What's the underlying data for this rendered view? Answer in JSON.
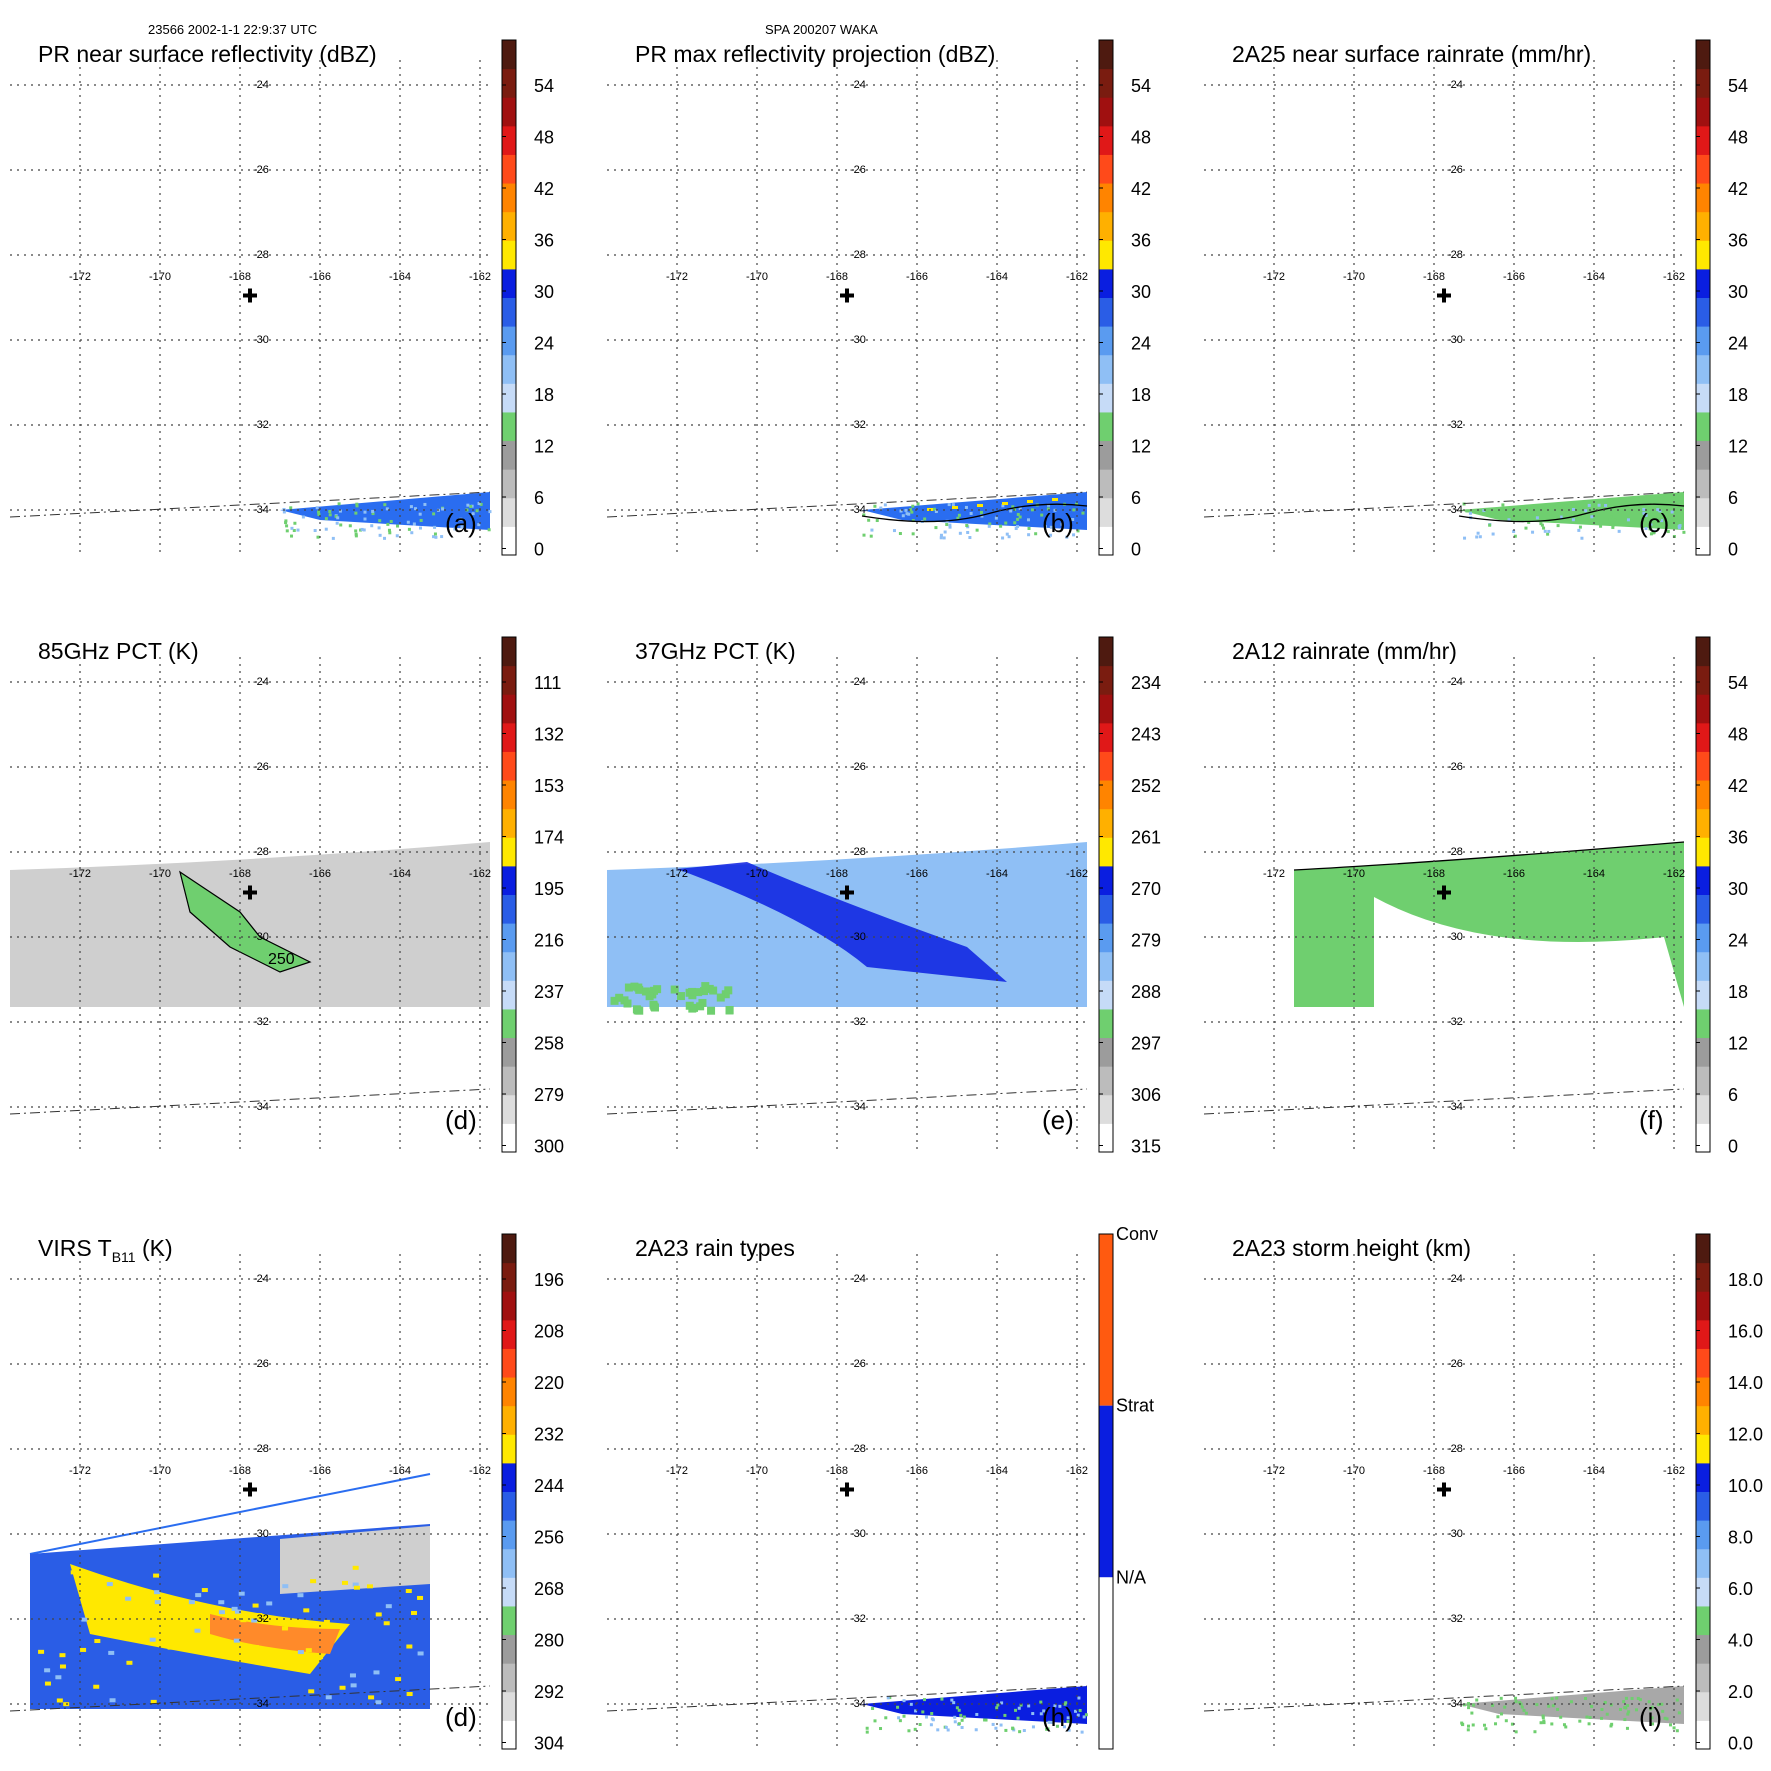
{
  "header": {
    "left": "23566 2002-1-1 22:9:37 UTC",
    "center": "SPA 200207 WAKA"
  },
  "colors": {
    "jet": [
      "#ffffff",
      "#dddddd",
      "#bcbcbc",
      "#9c9c9c",
      "#6fcf6f",
      "#c6dbf7",
      "#8fbff5",
      "#5a9bf0",
      "#2a5de6",
      "#0a1ee0",
      "#ffe800",
      "#ffb000",
      "#ff8400",
      "#ff4a1a",
      "#e01818",
      "#a01010",
      "#7a1c10",
      "#4e1a10"
    ],
    "rain_types": [
      "#ffffff",
      "#0a1ee0",
      "#ff5a10"
    ],
    "swath_blue": "#2a6df0",
    "gray_field": "#cfcfcf",
    "green_field": "#6fcf6f",
    "yellow_field": "#ffe800",
    "orange_field": "#ff8a2a",
    "light_blue": "#8fbff5"
  },
  "chart_data": [
    {
      "id": "a",
      "type": "heatmap",
      "title": "PR near surface reflectivity (dBZ)",
      "panel_label": "(a)",
      "cbar": {
        "ticks": [
          "54",
          "48",
          "42",
          "36",
          "30",
          "24",
          "18",
          "12",
          "6",
          "0"
        ],
        "range": [
          0,
          60
        ]
      },
      "field": "pr_swath",
      "lons": [
        "-172",
        "-170",
        "-168",
        "-166",
        "-164",
        "-162"
      ],
      "lats": [
        "-24",
        "-26",
        "-28",
        "-30",
        "-32",
        "-34"
      ],
      "cross": {
        "lon": -167.6,
        "lat": -29
      },
      "swath_lat_range": [
        -33.5,
        -34
      ]
    },
    {
      "id": "b",
      "type": "heatmap",
      "title": "PR max reflectivity projection (dBZ)",
      "panel_label": "(b)",
      "cbar": {
        "ticks": [
          "54",
          "48",
          "42",
          "36",
          "30",
          "24",
          "18",
          "12",
          "6",
          "0"
        ],
        "range": [
          0,
          60
        ]
      },
      "field": "pr_swath",
      "lons": [
        "-172",
        "-170",
        "-168",
        "-166",
        "-164",
        "-162"
      ],
      "lats": [
        "-24",
        "-26",
        "-28",
        "-30",
        "-32",
        "-34"
      ],
      "cross": {
        "lon": -167.6,
        "lat": -29
      },
      "contour": "20"
    },
    {
      "id": "c",
      "type": "heatmap",
      "title": "2A25 near surface rainrate (mm/hr)",
      "panel_label": "(c)",
      "cbar": {
        "ticks": [
          "54",
          "48",
          "42",
          "36",
          "30",
          "24",
          "18",
          "12",
          "6",
          "0"
        ],
        "range": [
          0,
          60
        ]
      },
      "field": "pr_swath",
      "lons": [
        "-172",
        "-170",
        "-168",
        "-166",
        "-164",
        "-162"
      ],
      "lats": [
        "-24",
        "-26",
        "-28",
        "-30",
        "-32",
        "-34"
      ],
      "cross": {
        "lon": -167.6,
        "lat": -29
      }
    },
    {
      "id": "d",
      "type": "heatmap",
      "title": "85GHz PCT (K)",
      "panel_label": "(d)",
      "cbar": {
        "ticks": [
          "111",
          "132",
          "153",
          "174",
          "195",
          "216",
          "237",
          "258",
          "279",
          "300"
        ],
        "range": [
          300,
          90
        ]
      },
      "field": "tmi_swath",
      "lons": [
        "-172",
        "-170",
        "-168",
        "-166",
        "-164",
        "-162"
      ],
      "lats": [
        "-24",
        "-26",
        "-28",
        "-30",
        "-32",
        "-34"
      ],
      "cross": {
        "lon": -167.6,
        "lat": -29
      },
      "contour": "250"
    },
    {
      "id": "e",
      "type": "heatmap",
      "title": "37GHz PCT (K)",
      "panel_label": "(e)",
      "cbar": {
        "ticks": [
          "234",
          "243",
          "252",
          "261",
          "270",
          "279",
          "288",
          "297",
          "306",
          "315"
        ],
        "range": [
          315,
          225
        ]
      },
      "field": "tmi_swath",
      "lons": [
        "-172",
        "-170",
        "-168",
        "-166",
        "-164",
        "-162"
      ],
      "lats": [
        "-24",
        "-26",
        "-28",
        "-30",
        "-32",
        "-34"
      ],
      "cross": {
        "lon": -167.6,
        "lat": -29
      }
    },
    {
      "id": "f",
      "type": "heatmap",
      "title": "2A12 rainrate (mm/hr)",
      "panel_label": "(f)",
      "cbar": {
        "ticks": [
          "54",
          "48",
          "42",
          "36",
          "30",
          "24",
          "18",
          "12",
          "6",
          "0"
        ],
        "range": [
          0,
          60
        ]
      },
      "field": "tmi_swath",
      "lons": [
        "-172",
        "-170",
        "-168",
        "-166",
        "-164",
        "-162"
      ],
      "lats": [
        "-24",
        "-26",
        "-28",
        "-30",
        "-32",
        "-34"
      ],
      "cross": {
        "lon": -167.6,
        "lat": -29
      }
    },
    {
      "id": "g",
      "type": "heatmap",
      "title_main": "VIRS T",
      "title_sub": "B11",
      "title_end": " (K)",
      "panel_label": "(d)",
      "cbar": {
        "ticks": [
          "196",
          "208",
          "220",
          "232",
          "244",
          "256",
          "268",
          "280",
          "292",
          "304"
        ],
        "range": [
          304,
          184
        ]
      },
      "field": "virs_swath",
      "lons": [
        "-172",
        "-170",
        "-168",
        "-166",
        "-164",
        "-162"
      ],
      "lats": [
        "-24",
        "-26",
        "-28",
        "-30",
        "-32",
        "-34"
      ],
      "cross": {
        "lon": -167.6,
        "lat": -29
      },
      "contour": "235"
    },
    {
      "id": "h",
      "type": "heatmap",
      "title": "2A23 rain types",
      "panel_label": "(h)",
      "cbar": {
        "categories": [
          "Conv",
          "Strat",
          "N/A"
        ]
      },
      "field": "pr_swath",
      "lons": [
        "-172",
        "-170",
        "-168",
        "-166",
        "-164",
        "-162"
      ],
      "lats": [
        "-24",
        "-26",
        "-28",
        "-30",
        "-32",
        "-34"
      ],
      "cross": {
        "lon": -167.6,
        "lat": -29
      }
    },
    {
      "id": "i",
      "type": "heatmap",
      "title": "2A23 storm height (km)",
      "panel_label": "(i)",
      "cbar": {
        "ticks": [
          "18.0",
          "16.0",
          "14.0",
          "12.0",
          "10.0",
          "8.0",
          "6.0",
          "4.0",
          "2.0",
          "0.0"
        ],
        "range": [
          0,
          20
        ]
      },
      "field": "pr_swath",
      "lons": [
        "-172",
        "-170",
        "-168",
        "-166",
        "-164",
        "-162"
      ],
      "lats": [
        "-24",
        "-26",
        "-28",
        "-30",
        "-32",
        "-34"
      ],
      "cross": {
        "lon": -167.6,
        "lat": -29
      }
    }
  ]
}
